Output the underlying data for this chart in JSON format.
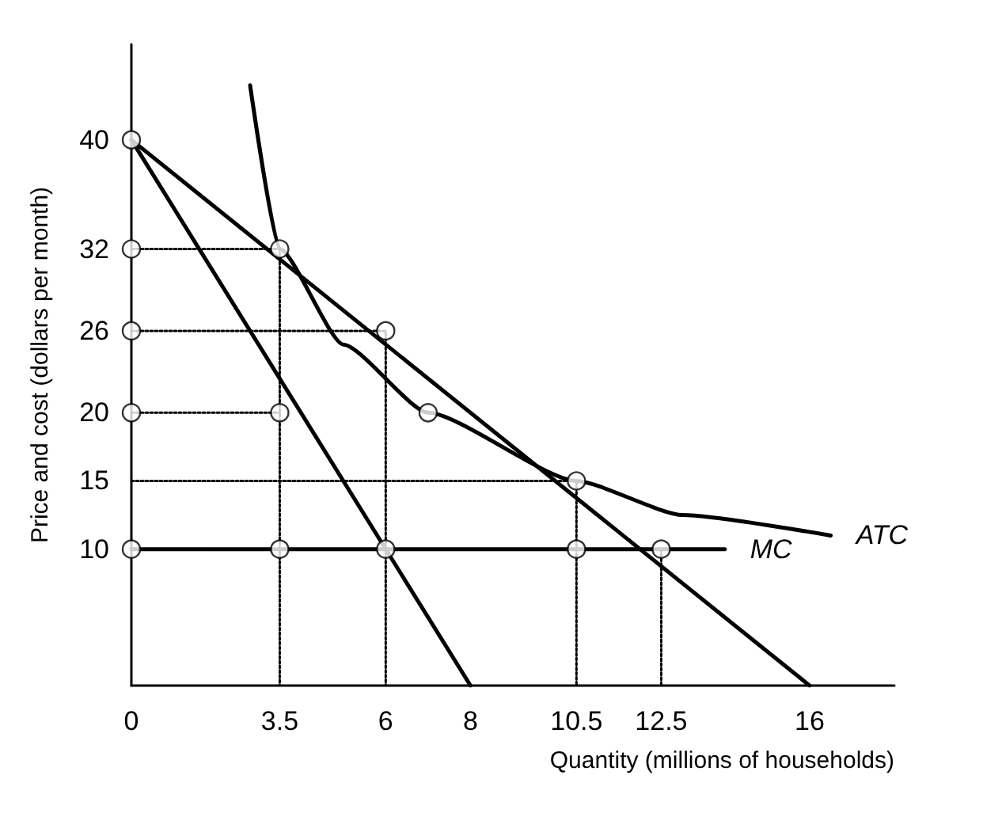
{
  "chart_data": {
    "type": "line",
    "xlabel": "Quantity (millions of households)",
    "ylabel": "Price and cost (dollars per month)",
    "xlim": [
      0,
      18
    ],
    "ylim": [
      0,
      47
    ],
    "xticks": [
      0,
      3.5,
      6,
      8,
      10.5,
      12.5,
      16
    ],
    "yticks": [
      10,
      15,
      20,
      26,
      32,
      40
    ],
    "grid": false,
    "legend": false,
    "line_style": "solid",
    "marker": "none",
    "series": [
      {
        "color": "#000000",
        "x": [
          0,
          16
        ],
        "values": [
          40,
          0
        ]
      },
      {
        "color": "#000000",
        "x": [
          0,
          8
        ],
        "values": [
          40,
          0
        ]
      },
      {
        "name": "ATC",
        "color": "#000000",
        "x": [
          2.8,
          3.5,
          5,
          7,
          10.5,
          13,
          16.5
        ],
        "values": [
          44,
          32,
          25,
          20,
          15,
          12.5,
          11
        ]
      },
      {
        "name": "MC",
        "color": "#000000",
        "x": [
          0,
          14
        ],
        "values": [
          10,
          10
        ]
      },
      {
        "color": "#000000",
        "line_style": "dotted",
        "x": [
          0,
          3.5,
          3.5
        ],
        "values": [
          32,
          32,
          0
        ]
      },
      {
        "color": "#000000",
        "line_style": "dotted",
        "x": [
          0,
          6,
          6
        ],
        "values": [
          26,
          26,
          0
        ]
      },
      {
        "color": "#000000",
        "line_style": "dotted",
        "x": [
          0,
          3.5
        ],
        "values": [
          20,
          20
        ]
      },
      {
        "color": "#000000",
        "line_style": "dotted",
        "x": [
          0,
          10.5,
          10.5
        ],
        "values": [
          15,
          15,
          0
        ]
      },
      {
        "color": "#000000",
        "line_style": "dotted",
        "x": [
          12.5,
          12.5
        ],
        "values": [
          10,
          0
        ]
      },
      {
        "type": "scatter",
        "marker": "circle",
        "color": "#ffffff",
        "x": [
          0,
          0,
          0,
          0,
          0,
          3.5,
          3.5,
          3.5,
          6,
          6,
          7,
          10.5,
          10.5,
          12.5
        ],
        "values": [
          40,
          32,
          26,
          20,
          10,
          32,
          20,
          10,
          26,
          10,
          20,
          15,
          10,
          10
        ]
      }
    ]
  }
}
